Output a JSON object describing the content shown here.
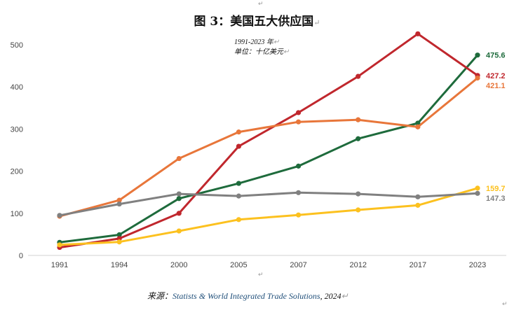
{
  "title": "图 3：美国五大供应国",
  "subtitle_years": "1991-2023 年",
  "subtitle_unit": "单位：十亿美元",
  "source_prefix": "来源：",
  "source_text": "Statists & World Integrated Trade Solutions",
  "source_suffix": ", 2024",
  "return_mark": "↵",
  "chart_data": {
    "type": "line",
    "categories": [
      "1991",
      "1994",
      "2000",
      "2005",
      "2007",
      "2012",
      "2017",
      "2023"
    ],
    "ylim": [
      0,
      500
    ],
    "yticks": [
      0,
      100,
      200,
      300,
      400,
      500
    ],
    "grid": false,
    "legend": "none",
    "series": [
      {
        "color": "#1e6b3c",
        "values": [
          31,
          49,
          135,
          171,
          212,
          277,
          314,
          475.6
        ],
        "end_label": "475.6"
      },
      {
        "color": "#c0272d",
        "values": [
          19,
          40,
          100,
          259,
          339,
          425,
          526,
          427.2
        ],
        "end_label": "427.2"
      },
      {
        "color": "#e8763a",
        "values": [
          93,
          131,
          230,
          293,
          317,
          322,
          305,
          421.1
        ],
        "end_label": "421.1"
      },
      {
        "color": "#fcc11f",
        "values": [
          25,
          32,
          58,
          85,
          96,
          108,
          119,
          159.7
        ],
        "end_label": "159.7"
      },
      {
        "color": "#808080",
        "values": [
          95,
          122,
          146,
          141,
          149,
          146,
          139,
          147.3
        ],
        "end_label": "147.3"
      }
    ]
  }
}
